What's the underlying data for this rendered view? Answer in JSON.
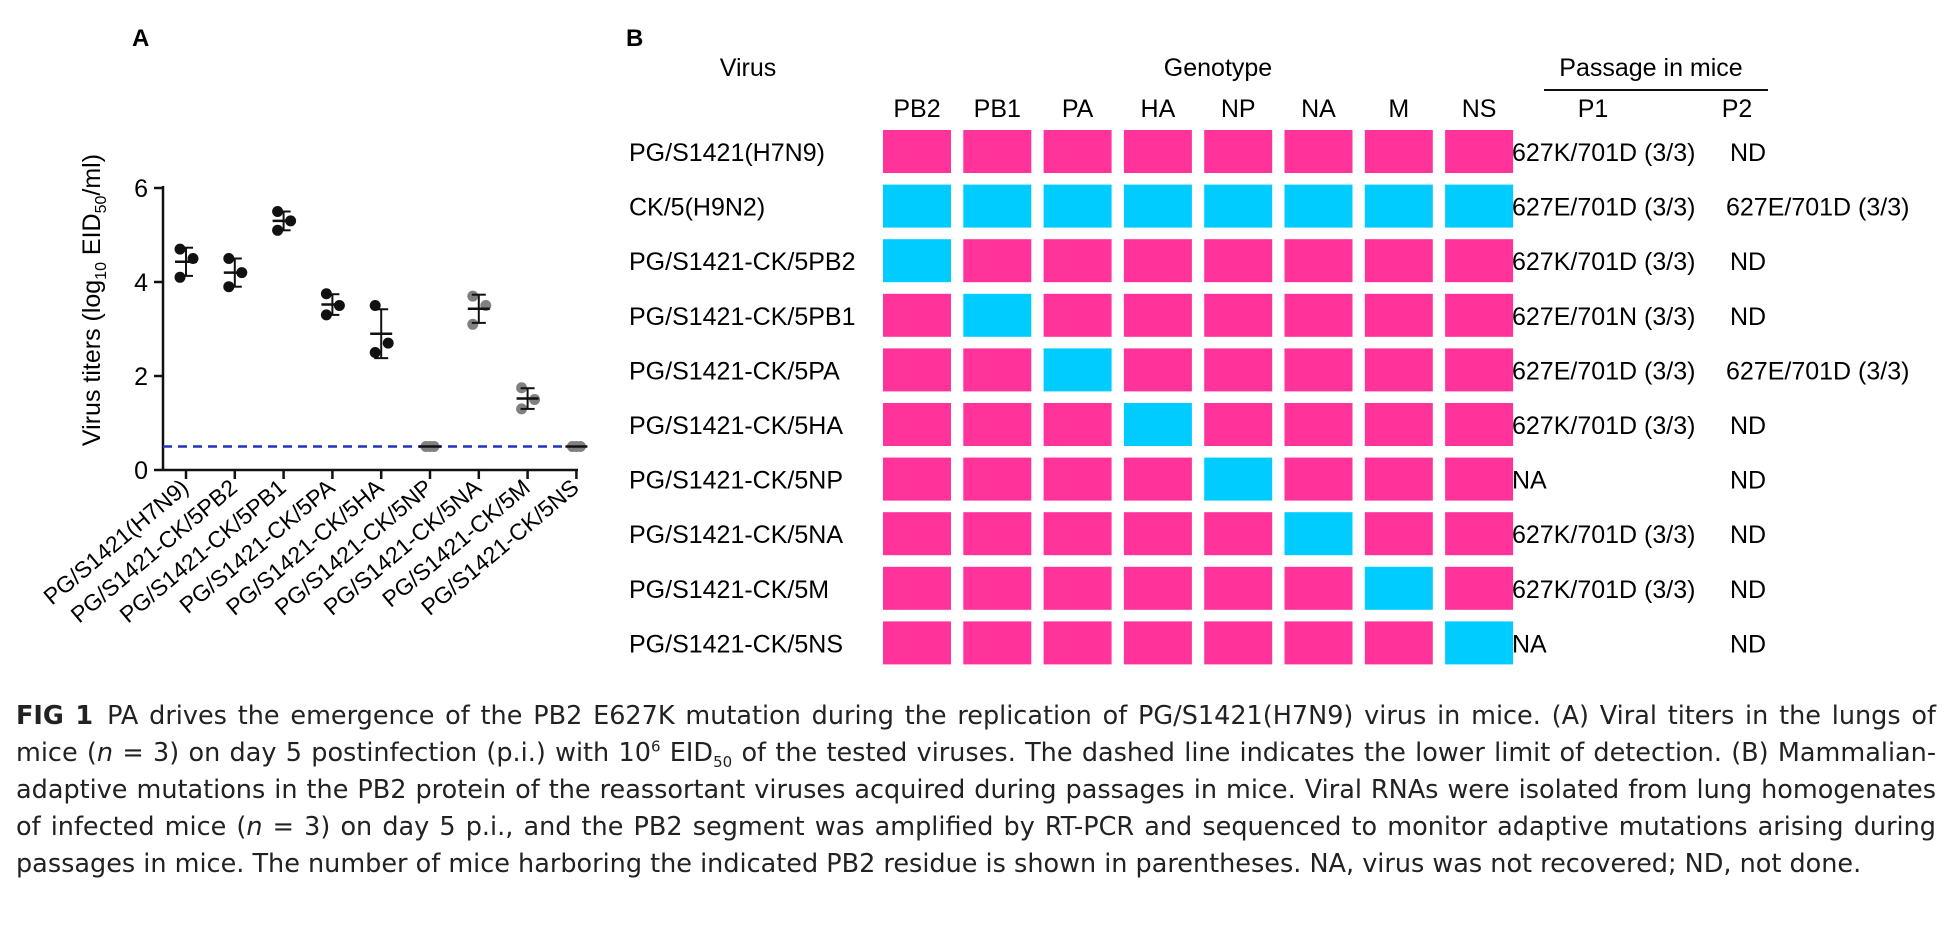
{
  "panel_a": {
    "label": "A",
    "chart_data": {
      "type": "scatter",
      "ylabel_parts": [
        "Virus titers (log",
        "10",
        " EID",
        "50",
        "/ml)"
      ],
      "ylim": [
        0,
        6
      ],
      "yticks": [
        0,
        2,
        4,
        6
      ],
      "detection_limit": 0.5,
      "categories": [
        "PG/S1421(H7N9)",
        "PG/S1421-CK/5PB2",
        "PG/S1421-CK/5PB1",
        "PG/S1421-CK/5PA",
        "PG/S1421-CK/5HA",
        "PG/S1421-CK/5NP",
        "PG/S1421-CK/5NA",
        "PG/S1421-CK/5M",
        "PG/S1421-CK/5NS"
      ],
      "points": [
        [
          4.7,
          4.5,
          4.1
        ],
        [
          4.5,
          4.2,
          3.9
        ],
        [
          5.5,
          5.3,
          5.1
        ],
        [
          3.75,
          3.5,
          3.3
        ],
        [
          3.5,
          2.7,
          2.5
        ],
        [
          0.5,
          0.5,
          0.5
        ],
        [
          3.7,
          3.5,
          3.1
        ],
        [
          1.75,
          1.5,
          1.3
        ],
        [
          0.5,
          0.5,
          0.5
        ]
      ],
      "means": [
        4.43,
        4.2,
        5.3,
        3.52,
        2.9,
        0.5,
        3.43,
        1.52,
        0.5
      ],
      "sd": [
        0.3,
        0.3,
        0.2,
        0.22,
        0.52,
        0.0,
        0.3,
        0.22,
        0.0
      ],
      "point_colors": [
        "#111111",
        "#111111",
        "#111111",
        "#111111",
        "#111111",
        "#808080",
        "#808080",
        "#808080",
        "#808080"
      ],
      "line_color": "#2233bb"
    }
  },
  "panel_b": {
    "label": "B",
    "headers": {
      "virus": "Virus",
      "genotype": "Genotype",
      "passage": "Passage in mice",
      "p1": "P1",
      "p2": "P2"
    },
    "segments": [
      "PB2",
      "PB1",
      "PA",
      "HA",
      "NP",
      "NA",
      "M",
      "NS"
    ],
    "colors": {
      "H7N9": "#ff3399",
      "H9N2": "#00ccff"
    },
    "rows": [
      {
        "virus": "PG/S1421(H7N9)",
        "genotype": [
          "H7N9",
          "H7N9",
          "H7N9",
          "H7N9",
          "H7N9",
          "H7N9",
          "H7N9",
          "H7N9"
        ],
        "p1": "627K/701D (3/3)",
        "p2": "ND"
      },
      {
        "virus": "CK/5(H9N2)",
        "genotype": [
          "H9N2",
          "H9N2",
          "H9N2",
          "H9N2",
          "H9N2",
          "H9N2",
          "H9N2",
          "H9N2"
        ],
        "p1": "627E/701D (3/3)",
        "p2": "627E/701D (3/3)"
      },
      {
        "virus": "PG/S1421-CK/5PB2",
        "genotype": [
          "H9N2",
          "H7N9",
          "H7N9",
          "H7N9",
          "H7N9",
          "H7N9",
          "H7N9",
          "H7N9"
        ],
        "p1": "627K/701D (3/3)",
        "p2": "ND"
      },
      {
        "virus": "PG/S1421-CK/5PB1",
        "genotype": [
          "H7N9",
          "H9N2",
          "H7N9",
          "H7N9",
          "H7N9",
          "H7N9",
          "H7N9",
          "H7N9"
        ],
        "p1": "627E/701N (3/3)",
        "p2": "ND"
      },
      {
        "virus": "PG/S1421-CK/5PA",
        "genotype": [
          "H7N9",
          "H7N9",
          "H9N2",
          "H7N9",
          "H7N9",
          "H7N9",
          "H7N9",
          "H7N9"
        ],
        "p1": "627E/701D (3/3)",
        "p2": "627E/701D (3/3)"
      },
      {
        "virus": "PG/S1421-CK/5HA",
        "genotype": [
          "H7N9",
          "H7N9",
          "H7N9",
          "H9N2",
          "H7N9",
          "H7N9",
          "H7N9",
          "H7N9"
        ],
        "p1": "627K/701D (3/3)",
        "p2": "ND"
      },
      {
        "virus": "PG/S1421-CK/5NP",
        "genotype": [
          "H7N9",
          "H7N9",
          "H7N9",
          "H7N9",
          "H9N2",
          "H7N9",
          "H7N9",
          "H7N9"
        ],
        "p1": "NA",
        "p2": "ND"
      },
      {
        "virus": "PG/S1421-CK/5NA",
        "genotype": [
          "H7N9",
          "H7N9",
          "H7N9",
          "H7N9",
          "H7N9",
          "H9N2",
          "H7N9",
          "H7N9"
        ],
        "p1": "627K/701D (3/3)",
        "p2": "ND"
      },
      {
        "virus": "PG/S1421-CK/5M",
        "genotype": [
          "H7N9",
          "H7N9",
          "H7N9",
          "H7N9",
          "H7N9",
          "H7N9",
          "H9N2",
          "H7N9"
        ],
        "p1": "627K/701D (3/3)",
        "p2": "ND"
      },
      {
        "virus": "PG/S1421-CK/5NS",
        "genotype": [
          "H7N9",
          "H7N9",
          "H7N9",
          "H7N9",
          "H7N9",
          "H7N9",
          "H7N9",
          "H9N2"
        ],
        "p1": "NA",
        "p2": "ND"
      }
    ]
  },
  "caption": {
    "label": "FIG 1",
    "s1": "PA drives the emergence of the PB2 E627K mutation during the replication of PG/S1421(H7N9) virus in mice. (A) Viral titers in the lungs of mice (",
    "n1": "n",
    "s2": " = 3) on day 5 postinfection (p.i.) with 10",
    "sup1": "6",
    "s3": " EID",
    "sub1": "50",
    "s4": " of the tested viruses. The dashed line indicates the lower limit of detection. (B) Mammalian-adaptive mutations in the PB2 protein of the reassortant viruses acquired during passages in mice. Viral RNAs were isolated from lung homogenates of infected mice (",
    "n2": "n",
    "s5": " = 3) on day 5 p.i., and the PB2 segment was amplified by RT-PCR and sequenced to monitor adaptive mutations arising during passages in mice. The number of mice harboring the indicated PB2 residue is shown in parentheses. NA, virus was not recovered; ND, not done."
  }
}
